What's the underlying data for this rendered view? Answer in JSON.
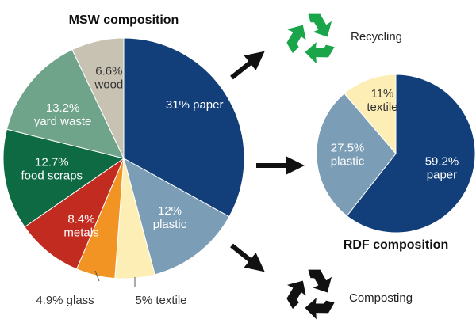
{
  "chart_data": [
    {
      "type": "pie",
      "title": "MSW composition",
      "slices": [
        {
          "label": "paper",
          "value": 31,
          "display": [
            "31% paper"
          ],
          "color": "#123f7a",
          "text_color": "#ffffff"
        },
        {
          "label": "plastic",
          "value": 12,
          "display": [
            "12%",
            "plastic"
          ],
          "color": "#7b9db5",
          "text_color": "#ffffff"
        },
        {
          "label": "textile",
          "value": 5,
          "display": [
            "5% textile"
          ],
          "color": "#fdeeb6",
          "text_color": "#333333",
          "outside": true
        },
        {
          "label": "glass",
          "value": 4.9,
          "display": [
            "4.9% glass"
          ],
          "color": "#f29424",
          "text_color": "#333333",
          "outside": true
        },
        {
          "label": "metals",
          "value": 8.4,
          "display": [
            "8.4%",
            "metals"
          ],
          "color": "#c22b1f",
          "text_color": "#ffffff"
        },
        {
          "label": "food scraps",
          "value": 12.7,
          "display": [
            "12.7%",
            "food scraps"
          ],
          "color": "#0e6a43",
          "text_color": "#ffffff"
        },
        {
          "label": "yard waste",
          "value": 13.2,
          "display": [
            "13.2%",
            "yard waste"
          ],
          "color": "#6fa48b",
          "text_color": "#ffffff"
        },
        {
          "label": "wood",
          "value": 6.6,
          "display": [
            "6.6%",
            "wood"
          ],
          "color": "#c7c2b2",
          "text_color": "#333333"
        }
      ]
    },
    {
      "type": "pie",
      "title": "RDF composition",
      "slices": [
        {
          "label": "paper",
          "value": 59.2,
          "display": [
            "59.2%",
            "paper"
          ],
          "color": "#123f7a",
          "text_color": "#ffffff"
        },
        {
          "label": "plastic",
          "value": 27.5,
          "display": [
            "27.5%",
            "plastic"
          ],
          "color": "#7b9db5",
          "text_color": "#ffffff"
        },
        {
          "label": "textile",
          "value": 11,
          "display": [
            "11%",
            "textile"
          ],
          "color": "#fdeeb6",
          "text_color": "#333333"
        }
      ]
    }
  ],
  "flow": [
    {
      "label": "Recycling",
      "icon": "recycling-icon",
      "color": "#1aa54a"
    },
    {
      "label": "Composting",
      "icon": "composting-icon",
      "color": "#111111"
    }
  ]
}
